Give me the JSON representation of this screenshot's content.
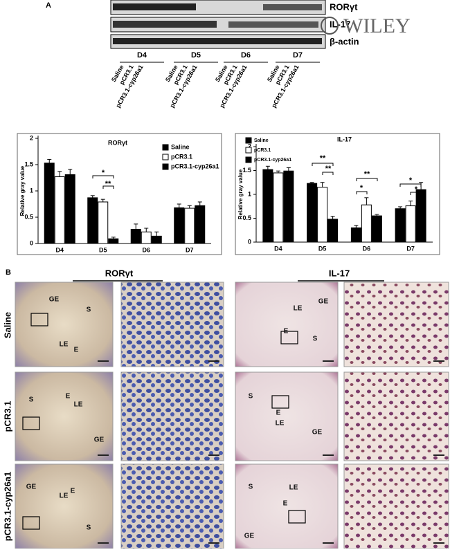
{
  "panel_labels": [
    "A",
    "B"
  ],
  "blot": {
    "bands": [
      "RORγt",
      "IL-17",
      "β-actin"
    ],
    "groups": [
      "D4",
      "D5",
      "D6",
      "D7"
    ],
    "lanes": [
      "Saline",
      "pCR3.1",
      "pCR3.1-cyp26a1"
    ],
    "watermark": "WILEY"
  },
  "chart_data": [
    {
      "type": "bar",
      "title": "RORγt",
      "y_label": "Relative gray value",
      "categories": [
        "D4",
        "D5",
        "D6",
        "D7"
      ],
      "series": [
        {
          "name": "Saline",
          "color": "#000000",
          "values": [
            1.53,
            0.87,
            0.27,
            0.68
          ],
          "errors": [
            0.07,
            0.04,
            0.1,
            0.07
          ]
        },
        {
          "name": "pCR3.1",
          "color": "#ffffff",
          "values": [
            1.27,
            0.79,
            0.22,
            0.67
          ],
          "errors": [
            0.1,
            0.05,
            0.07,
            0.05
          ]
        },
        {
          "name": "pCR3.1-cyp26a1",
          "color": "#000000",
          "values": [
            1.31,
            0.09,
            0.14,
            0.72
          ],
          "errors": [
            0.1,
            0.03,
            0.08,
            0.07
          ]
        }
      ],
      "ylim": [
        0,
        2
      ],
      "yticks": [
        0,
        0.5,
        1,
        1.5,
        2
      ],
      "legend": "upper right",
      "annotations": [
        "*",
        "**"
      ]
    },
    {
      "type": "bar",
      "title": "IL-17",
      "y_label": "Relative gray value",
      "categories": [
        "D4",
        "D5",
        "D6",
        "D7"
      ],
      "series": [
        {
          "name": "Saline",
          "color": "#000000",
          "values": [
            1.52,
            1.23,
            0.3,
            0.7
          ],
          "errors": [
            0.07,
            0.02,
            0.05,
            0.04
          ]
        },
        {
          "name": "pCR3.1",
          "color": "#ffffff",
          "values": [
            1.45,
            1.15,
            0.78,
            0.76
          ],
          "errors": [
            0.04,
            0.1,
            0.15,
            0.1
          ]
        },
        {
          "name": "pCR3.1-cyp26a1",
          "color": "#000000",
          "values": [
            1.49,
            0.48,
            0.55,
            1.1
          ],
          "errors": [
            0.07,
            0.06,
            0.03,
            0.15
          ]
        }
      ],
      "ylim": [
        0,
        2
      ],
      "yticks": [
        0,
        0.5,
        1,
        1.5,
        2
      ],
      "legend": "upper left",
      "annotations": [
        "**",
        "**",
        "**",
        "*",
        "*",
        "*"
      ]
    }
  ],
  "ihc": {
    "columns": [
      "RORγt",
      "IL-17"
    ],
    "rows": [
      "Saline",
      "pCR3.1",
      "pCR3.1-cyp26a1"
    ],
    "tile_labels": [
      [
        "GE",
        "S",
        "LE",
        "E"
      ],
      [
        "LE",
        "GE",
        "E",
        "S"
      ],
      [
        "S",
        "E",
        "LE",
        "GE"
      ],
      [
        "S",
        "E",
        "LE",
        "GE"
      ],
      [
        "GE",
        "E",
        "LE",
        "S"
      ],
      [
        "S",
        "LE",
        "E",
        "GE"
      ]
    ]
  }
}
